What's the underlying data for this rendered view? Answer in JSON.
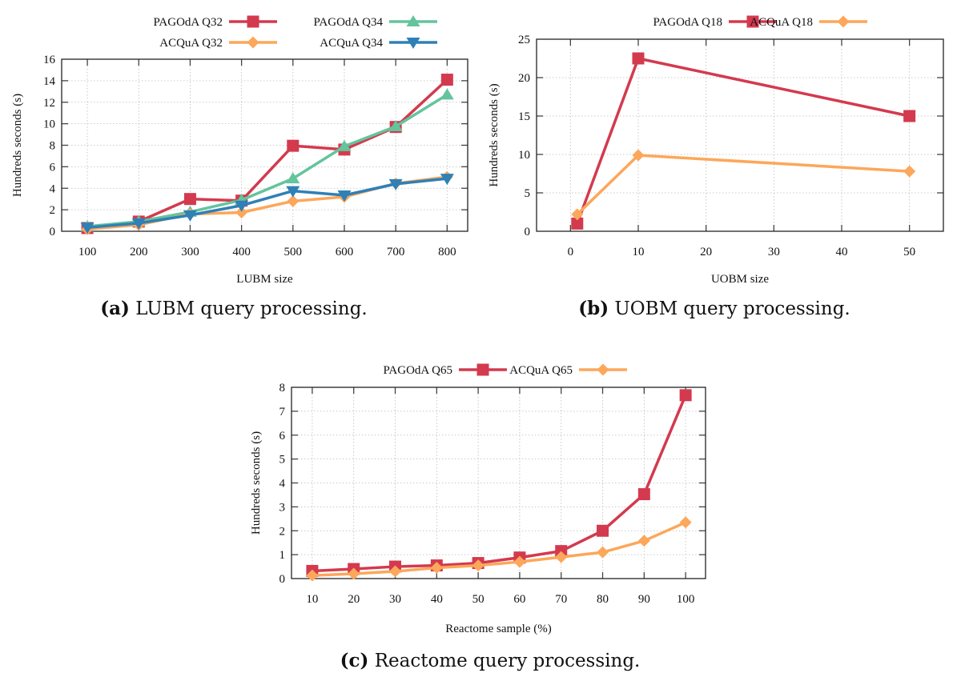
{
  "colors": {
    "red": "#d33a4e",
    "teal": "#64c49c",
    "orange": "#fca75a",
    "blue": "#2f80b6"
  },
  "captions": [
    {
      "tag": "(a)",
      "text": "LUBM query processing."
    },
    {
      "tag": "(b)",
      "text": "UOBM query processing."
    },
    {
      "tag": "(c)",
      "text": "Reactome query processing."
    }
  ],
  "chart_data": [
    {
      "id": "a",
      "type": "line",
      "title": "",
      "xlabel": "LUBM size",
      "ylabel": "Hundreds seconds (s)",
      "x": [
        100,
        200,
        300,
        400,
        500,
        600,
        700,
        800
      ],
      "xticks": [
        100,
        200,
        300,
        400,
        500,
        600,
        700,
        800
      ],
      "xlim": [
        50,
        840
      ],
      "ylim": [
        0,
        16
      ],
      "yticks": [
        0,
        2,
        4,
        6,
        8,
        10,
        12,
        14,
        16
      ],
      "grid": true,
      "legend_position": "top",
      "series": [
        {
          "name": "PAGOdA Q32",
          "color": "red",
          "marker": "square",
          "values": [
            0.3,
            0.9,
            3.0,
            2.85,
            7.95,
            7.6,
            9.7,
            14.1
          ]
        },
        {
          "name": "PAGOdA Q34",
          "color": "teal",
          "marker": "triangle-up",
          "values": [
            0.45,
            0.9,
            1.8,
            2.9,
            4.9,
            7.9,
            9.75,
            12.7
          ]
        },
        {
          "name": "ACQuA Q32",
          "color": "orange",
          "marker": "diamond",
          "values": [
            0.2,
            0.6,
            1.6,
            1.75,
            2.8,
            3.2,
            4.45,
            5.05
          ]
        },
        {
          "name": "ACQuA Q34",
          "color": "blue",
          "marker": "triangle-down",
          "values": [
            0.35,
            0.75,
            1.5,
            2.4,
            3.75,
            3.35,
            4.4,
            4.9
          ]
        }
      ]
    },
    {
      "id": "b",
      "type": "line",
      "title": "",
      "xlabel": "UOBM size",
      "ylabel": "Hundreds seconds (s)",
      "x": [
        1,
        10,
        50
      ],
      "xticks": [
        0,
        10,
        20,
        30,
        40,
        50
      ],
      "xlim": [
        -5,
        55
      ],
      "ylim": [
        0,
        25
      ],
      "yticks": [
        0,
        5,
        10,
        15,
        20,
        25
      ],
      "grid": true,
      "legend_position": "top",
      "series": [
        {
          "name": "PAGOdA Q18",
          "color": "red",
          "marker": "square",
          "values": [
            1.0,
            22.5,
            15.0
          ]
        },
        {
          "name": "ACQuA Q18",
          "color": "orange",
          "marker": "diamond",
          "values": [
            2.2,
            9.9,
            7.8
          ]
        }
      ]
    },
    {
      "id": "c",
      "type": "line",
      "title": "",
      "xlabel": "Reactome sample (%)",
      "ylabel": "Hundreds seconds (s)",
      "x": [
        10,
        20,
        30,
        40,
        50,
        60,
        70,
        80,
        90,
        100
      ],
      "xticks": [
        10,
        20,
        30,
        40,
        50,
        60,
        70,
        80,
        90,
        100
      ],
      "xlim": [
        5,
        104.8
      ],
      "ylim": [
        0,
        8
      ],
      "yticks": [
        0,
        1,
        2,
        3,
        4,
        5,
        6,
        7,
        8
      ],
      "grid": true,
      "legend_position": "top",
      "series": [
        {
          "name": "PAGOdA Q65",
          "color": "red",
          "marker": "square",
          "values": [
            0.32,
            0.4,
            0.5,
            0.55,
            0.65,
            0.88,
            1.15,
            2.0,
            3.53,
            7.67
          ]
        },
        {
          "name": "ACQuA Q65",
          "color": "orange",
          "marker": "diamond",
          "values": [
            0.13,
            0.2,
            0.3,
            0.45,
            0.55,
            0.7,
            0.9,
            1.1,
            1.58,
            2.35
          ]
        }
      ]
    }
  ]
}
